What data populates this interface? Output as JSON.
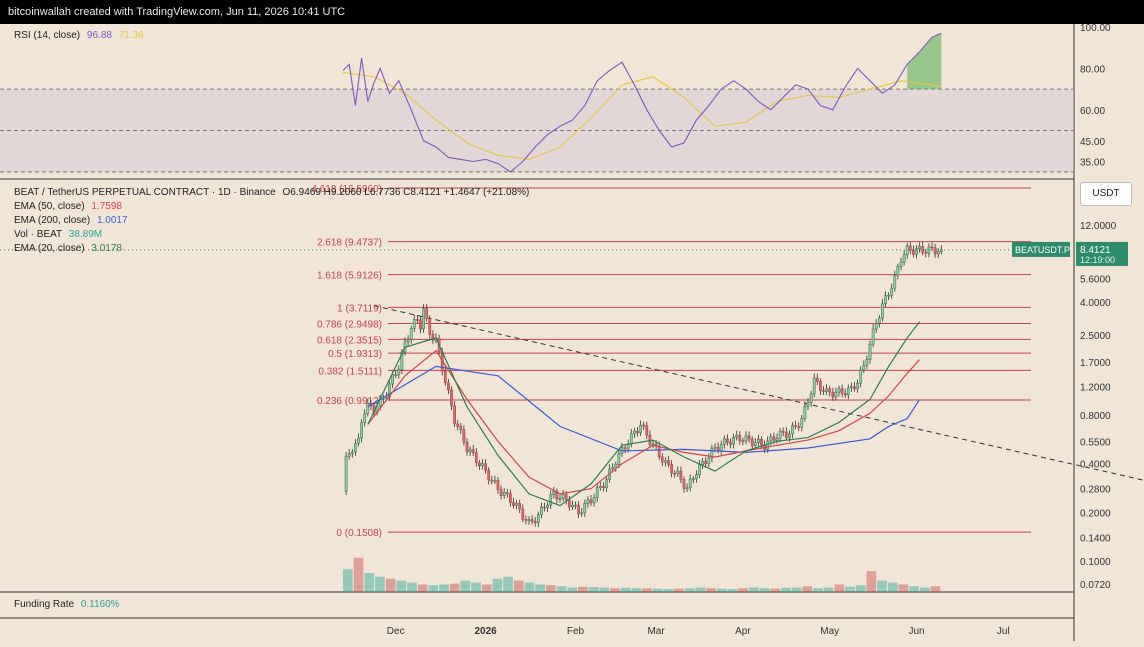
{
  "header": {
    "text": "bitcoinwallah created with TradingView.com, Jun 11, 2026 10:41 UTC"
  },
  "rsi_legend": {
    "label": "RSI (14, close)",
    "value1": "96.88",
    "value2": "71.36"
  },
  "main_legend": {
    "symbol": "BEAT / TetherUS PERPETUAL CONTRACT · 1D · Binance",
    "ohlc": "O6.9469 H9.2060 L6.7736 C8.4121 +1.4647 (+21.08%)",
    "ema50": {
      "label": "EMA (50, close)",
      "value": "1.7598"
    },
    "ema200": {
      "label": "EMA (200, close)",
      "value": "1.0017"
    },
    "vol": {
      "label": "Vol · BEAT",
      "value": "38.89M"
    },
    "ema20": {
      "label": "EMA (20, close)",
      "value": "3.0178"
    }
  },
  "funding": {
    "label": "Funding Rate",
    "value": "0.1160%"
  },
  "currency_button": "USDT",
  "price_tag": {
    "symbol": "BEATUSDT.P",
    "price": "8.4121",
    "countdown": "12:19:00"
  },
  "colors": {
    "background": "#f1e5d6",
    "up": "#26a69a",
    "down": "#c94c4c",
    "ema50": "#d64545",
    "ema200": "#3b5bdb",
    "ema20": "#2e7d52",
    "rsi": "#7e57c2",
    "rsi_ma": "#e6c84a",
    "fib": "#c9424a"
  },
  "chart_data": [
    {
      "type": "line",
      "title": "RSI (14, close)",
      "y_ticks": [
        100,
        80,
        60,
        45,
        35
      ],
      "y_tick_labels": [
        "100.00",
        "80.00",
        "60.00",
        "45.00",
        "35.00"
      ],
      "bands": [
        70,
        50,
        30
      ],
      "ylim": [
        28,
        100
      ],
      "series": [
        {
          "name": "RSI",
          "x_days": [
            0,
            2,
            4,
            6,
            8,
            10,
            12,
            15,
            18,
            22,
            26,
            30,
            34,
            38,
            42,
            46,
            50,
            54,
            58,
            62,
            66,
            70,
            74,
            78,
            82,
            86,
            90,
            94,
            98,
            102,
            106,
            110,
            114,
            118,
            122,
            126,
            130,
            134,
            138,
            142,
            146,
            150,
            154,
            158,
            162,
            166,
            170,
            174,
            178,
            182,
            186,
            190,
            193
          ],
          "values": [
            79,
            82,
            62,
            85,
            64,
            73,
            80,
            68,
            74,
            60,
            45,
            42,
            37,
            36,
            35,
            36,
            34,
            30,
            35,
            42,
            48,
            52,
            55,
            62,
            74,
            79,
            83,
            72,
            60,
            50,
            42,
            44,
            55,
            62,
            70,
            74,
            70,
            64,
            60,
            66,
            72,
            70,
            62,
            60,
            71,
            80,
            74,
            68,
            72,
            82,
            88,
            95,
            97
          ]
        },
        {
          "name": "RSI MA",
          "x_days": [
            0,
            10,
            20,
            30,
            40,
            50,
            60,
            70,
            80,
            90,
            100,
            110,
            120,
            130,
            140,
            150,
            160,
            170,
            180,
            190,
            193
          ],
          "values": [
            78,
            76,
            68,
            55,
            44,
            38,
            36,
            42,
            56,
            72,
            76,
            66,
            52,
            54,
            64,
            67,
            66,
            70,
            74,
            72,
            71
          ]
        }
      ]
    },
    {
      "type": "candlestick",
      "title": "BEAT / TetherUS PERPETUAL CONTRACT · 1D · Binance",
      "scale": "log",
      "x_labels": [
        "Dec",
        "2026",
        "Feb",
        "Mar",
        "Apr",
        "May",
        "Jun",
        "Jul"
      ],
      "y_ticks": [
        12.0,
        8.0,
        5.6,
        4.0,
        2.5,
        1.7,
        1.2,
        0.8,
        0.55,
        0.4,
        0.28,
        0.2,
        0.14,
        0.1,
        0.072
      ],
      "y_tick_labels": [
        "12.0000",
        "8.0000",
        "5.6000",
        "4.0000",
        "2.5000",
        "1.7000",
        "1.2000",
        "0.8000",
        "0.5500",
        "0.4000",
        "0.2800",
        "0.2000",
        "0.1400",
        "0.1000",
        "0.0720"
      ],
      "ylim": [
        0.068,
        14
      ],
      "fib_levels": [
        {
          "label": "4.618 (16.5960)",
          "value": 16.596
        },
        {
          "label": "2.618 (9.4737)",
          "value": 9.4737
        },
        {
          "label": "1.618 (5.9126)",
          "value": 5.9126
        },
        {
          "label": "1 (3.7119)",
          "value": 3.7119
        },
        {
          "label": "0.786 (2.9498)",
          "value": 2.9498
        },
        {
          "label": "0.618 (2.3515)",
          "value": 2.3515
        },
        {
          "label": "0.5 (1.9313)",
          "value": 1.9313
        },
        {
          "label": "0.382 (1.5111)",
          "value": 1.5111
        },
        {
          "label": "0.236 (0.9912)",
          "value": 0.9912
        },
        {
          "label": "0 (0.1508)",
          "value": 0.1508
        }
      ],
      "trendline": {
        "from": {
          "day": 10,
          "value": 3.8
        },
        "to": {
          "day": 254,
          "value": 0.15
        }
      },
      "price_path_days": [
        0,
        1,
        2,
        3,
        4,
        5,
        6,
        7,
        8,
        10,
        12,
        14,
        16,
        18,
        20,
        22,
        24,
        25,
        26,
        27,
        28,
        30,
        33,
        36,
        40,
        45,
        50,
        55,
        60,
        63,
        65,
        68,
        70,
        73,
        76,
        80,
        85,
        88,
        92,
        96,
        100,
        104,
        108,
        111,
        114,
        117,
        120,
        124,
        128,
        132,
        136,
        140,
        144,
        148,
        152,
        156,
        160,
        164,
        166,
        168,
        170,
        172,
        174,
        176,
        178,
        180,
        182,
        184,
        186,
        188,
        190,
        192,
        193
      ],
      "price_path": [
        0.27,
        0.42,
        0.47,
        0.5,
        0.52,
        0.55,
        0.75,
        0.85,
        0.9,
        0.88,
        0.95,
        1.1,
        1.35,
        1.6,
        2.2,
        2.8,
        3.1,
        2.9,
        3.6,
        3.0,
        2.6,
        2.3,
        1.3,
        0.75,
        0.5,
        0.38,
        0.28,
        0.23,
        0.17,
        0.19,
        0.22,
        0.26,
        0.25,
        0.23,
        0.2,
        0.24,
        0.32,
        0.42,
        0.55,
        0.7,
        0.52,
        0.4,
        0.34,
        0.28,
        0.36,
        0.42,
        0.5,
        0.55,
        0.58,
        0.55,
        0.52,
        0.6,
        0.62,
        0.75,
        1.3,
        1.1,
        1.1,
        1.15,
        1.3,
        1.6,
        2.2,
        3.0,
        3.8,
        4.6,
        5.6,
        7.5,
        8.4,
        8.4,
        8.4,
        8.4,
        8.4,
        8.4,
        8.4
      ],
      "ema50": {
        "x_days": [
          8,
          20,
          30,
          40,
          50,
          60,
          70,
          80,
          90,
          100,
          110,
          120,
          130,
          140,
          150,
          160,
          170,
          176,
          182,
          186
        ],
        "values": [
          0.7,
          1.4,
          2.0,
          1.0,
          0.55,
          0.33,
          0.26,
          0.28,
          0.4,
          0.52,
          0.47,
          0.44,
          0.48,
          0.52,
          0.56,
          0.64,
          0.82,
          1.05,
          1.45,
          1.76
        ]
      },
      "ema200": {
        "x_days": [
          8,
          30,
          50,
          70,
          90,
          110,
          130,
          150,
          170,
          176,
          182,
          186
        ],
        "values": [
          0.9,
          1.6,
          1.4,
          0.68,
          0.48,
          0.49,
          0.47,
          0.5,
          0.57,
          0.68,
          0.76,
          1.0
        ]
      },
      "ema20": {
        "x_days": [
          8,
          20,
          30,
          40,
          50,
          60,
          70,
          80,
          90,
          100,
          110,
          120,
          130,
          140,
          150,
          160,
          170,
          176,
          182,
          186
        ],
        "values": [
          0.7,
          2.1,
          2.4,
          0.9,
          0.45,
          0.26,
          0.22,
          0.3,
          0.52,
          0.56,
          0.44,
          0.36,
          0.48,
          0.55,
          0.58,
          0.72,
          1.0,
          1.6,
          2.4,
          3.02
        ]
      },
      "volume_relative": [
        0.6,
        0.9,
        0.5,
        0.4,
        0.35,
        0.3,
        0.25,
        0.2,
        0.18,
        0.2,
        0.22,
        0.3,
        0.25,
        0.2,
        0.35,
        0.4,
        0.3,
        0.25,
        0.2,
        0.18,
        0.15,
        0.12,
        0.14,
        0.13,
        0.12,
        0.1,
        0.11,
        0.1,
        0.1,
        0.09,
        0.08,
        0.09,
        0.1,
        0.12,
        0.1,
        0.09,
        0.08,
        0.1,
        0.12,
        0.1,
        0.09,
        0.11,
        0.12,
        0.15,
        0.1,
        0.12,
        0.2,
        0.14,
        0.18,
        0.55,
        0.3,
        0.25,
        0.2,
        0.15,
        0.12,
        0.15
      ]
    }
  ]
}
